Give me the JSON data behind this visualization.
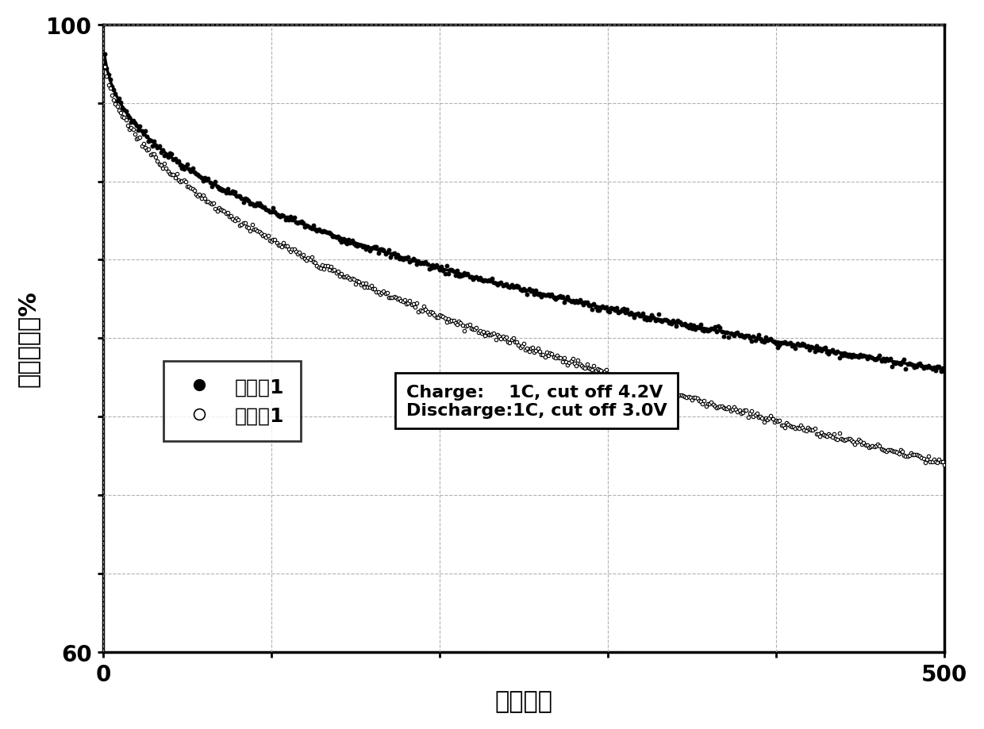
{
  "title": "",
  "xlabel": "循环圈数",
  "ylabel": "容量保持率%",
  "xlim": [
    0,
    500
  ],
  "ylim": [
    60,
    100
  ],
  "background_color": "#ffffff",
  "grid_color": "#aaaaaa",
  "annotation_text": "Charge:    1C, cut off 4.2V\nDischarge:1C, cut off 3.0V",
  "legend_labels": [
    "实施例1",
    "对比例1"
  ],
  "series1_start": 100.0,
  "series1_end": 78.0,
  "series1_exponent": 0.38,
  "series2_start": 98.5,
  "series2_end": 72.0,
  "series2_exponent": 0.48,
  "n_points": 480,
  "marker_size": 3.2,
  "line_width": 2.5,
  "tick_label_fontsize": 20,
  "axis_label_fontsize": 22,
  "legend_fontsize": 18,
  "annotation_fontsize": 16
}
